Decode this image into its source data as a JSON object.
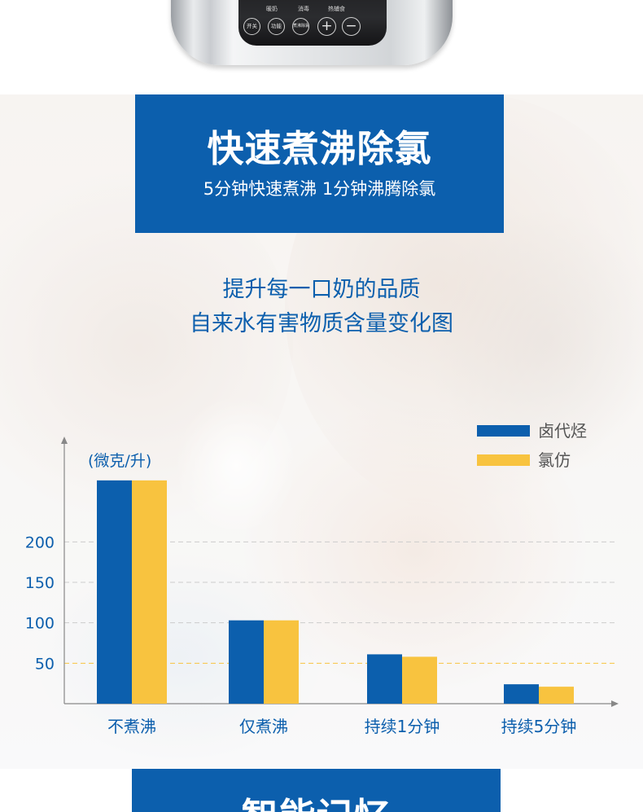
{
  "device": {
    "labels": [
      "暖奶",
      "消毒",
      "热辅食"
    ],
    "buttons": [
      "开关",
      "功能",
      "煮沸除氯",
      "+",
      "−"
    ]
  },
  "banner": {
    "title": "快速煮沸除氯",
    "subtitle": "5分钟快速煮沸 1分钟沸腾除氯"
  },
  "chart_heading": {
    "line1": "提升每一口奶的品质",
    "line2": "自来水有害物质含量变化图"
  },
  "chart_data": {
    "type": "bar",
    "title": "自来水有害物质含量变化图",
    "ylabel": "(微克/升)",
    "xlabel": "",
    "categories": [
      "不煮沸",
      "仅煮沸",
      "持续1分钟",
      "持续5分钟"
    ],
    "series": [
      {
        "name": "卤代烃",
        "color": "#0c5fad",
        "values": [
          276,
          103,
          61,
          24
        ]
      },
      {
        "name": "氯仿",
        "color": "#f8c33f",
        "values": [
          276,
          103,
          58,
          21
        ]
      }
    ],
    "yticks": [
      50,
      100,
      150,
      200
    ],
    "ylim": [
      0,
      300
    ],
    "grid": true,
    "legend": "top-right",
    "colors": {
      "axis": "#888888",
      "tick_text": "#0c5fad",
      "label_text": "#0c5fad",
      "legend_text": "#555555",
      "grid": "#cccccc",
      "grid_50": "#f8c33f"
    }
  },
  "bottom_banner": {
    "title": "智能记忆"
  }
}
